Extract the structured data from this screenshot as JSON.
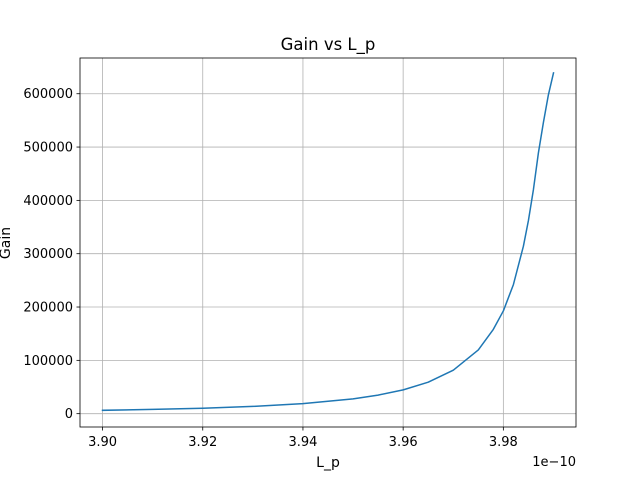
{
  "chart_data": {
    "type": "line",
    "title": "Gain vs L_p",
    "xlabel": "L_p",
    "ylabel": "Gain",
    "x_offset_label": "1e−10",
    "xlim": [
      3.8955,
      3.9945
    ],
    "ylim": [
      -25000,
      667000
    ],
    "grid": true,
    "x_ticks": [
      3.9,
      3.92,
      3.94,
      3.96,
      3.98
    ],
    "x_tick_labels": [
      "3.90",
      "3.92",
      "3.94",
      "3.96",
      "3.98"
    ],
    "y_ticks": [
      0,
      100000,
      200000,
      300000,
      400000,
      500000,
      600000
    ],
    "y_tick_labels": [
      "0",
      "100000",
      "200000",
      "300000",
      "400000",
      "500000",
      "600000"
    ],
    "series": [
      {
        "color": "#1f77b4",
        "x": [
          3.9,
          3.91,
          3.92,
          3.93,
          3.94,
          3.95,
          3.955,
          3.96,
          3.965,
          3.97,
          3.975,
          3.978,
          3.98,
          3.982,
          3.984,
          3.985,
          3.986,
          3.987,
          3.988,
          3.989,
          3.99
        ],
        "y": [
          6390,
          7960,
          10250,
          13630,
          18930,
          27780,
          34770,
          44560,
          58990,
          81440,
          119500,
          158000,
          193000,
          242000,
          314000,
          362000,
          420000,
          489000,
          546000,
          598000,
          639000
        ]
      }
    ]
  }
}
